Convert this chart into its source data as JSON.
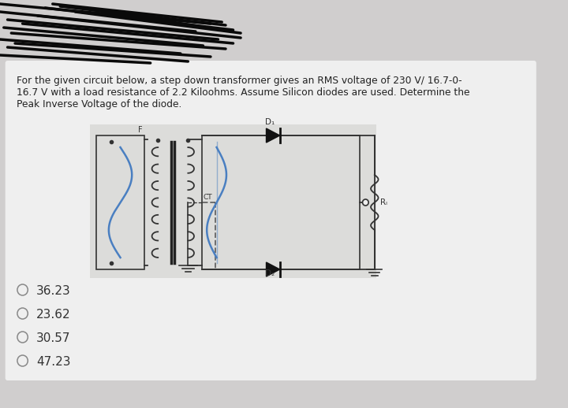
{
  "bg_color": "#d0cece",
  "white_panel_color": "#e8e6e6",
  "text_color": "#222222",
  "question_line1": "For the given circuit below, a step down transformer gives an RMS voltage of 230 V/ 16.7-0-",
  "question_line2": "16.7 V with a load resistance of 2.2 Kiloohms. Assume Silicon diodes are used. Determine the",
  "question_line3": "Peak Inverse Voltage of the diode.",
  "options": [
    "36.23",
    "23.62",
    "30.57",
    "47.23"
  ],
  "circuit_bg": "#e8e6e3",
  "scribble_color": "#0a0a0a",
  "blue_color": "#4a7fc1",
  "dark_color": "#222222",
  "wire_color": "#333333",
  "gray_color": "#555555"
}
